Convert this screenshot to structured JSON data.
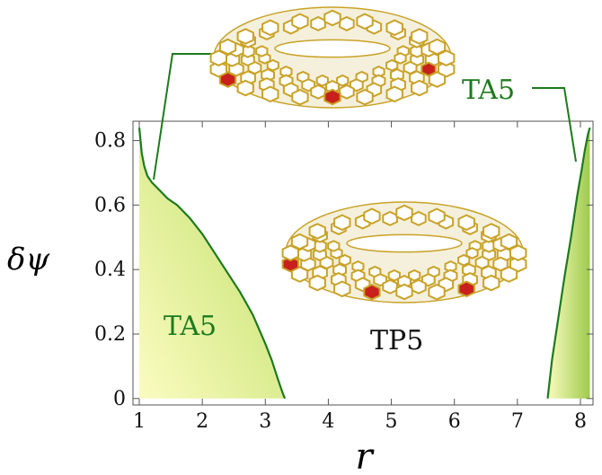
{
  "chart_data": {
    "type": "area",
    "xlabel": "r",
    "ylabel": "δψ",
    "xlim": [
      0.9,
      8.2
    ],
    "ylim": [
      -0.02,
      0.86
    ],
    "xticks": [
      "1",
      "2",
      "3",
      "4",
      "5",
      "6",
      "7",
      "8"
    ],
    "yticks": [
      "0",
      "0.2",
      "0.4",
      "0.6",
      "0.8"
    ],
    "grid": false,
    "legend": "none",
    "colors": {
      "fill_light": "#fbfcc0",
      "fill_dark": "#a7cf57",
      "boundary": "#1d7a1d",
      "label": "#1d7a1d",
      "pentagon_red": "#c8201c",
      "pentagon_blue": "#1a2a8a",
      "lattice": "#c9a227"
    },
    "regions": [
      {
        "label": "TA5",
        "boundary": {
          "x": [
            1.0,
            1.04,
            1.08,
            1.13,
            1.2,
            1.3,
            1.45,
            1.6,
            1.8,
            2.0,
            2.2,
            2.4,
            2.6,
            2.8,
            3.0,
            3.1,
            3.2,
            3.27,
            3.31
          ],
          "y": [
            0.84,
            0.76,
            0.72,
            0.69,
            0.67,
            0.65,
            0.62,
            0.6,
            0.56,
            0.51,
            0.45,
            0.39,
            0.33,
            0.26,
            0.17,
            0.12,
            0.06,
            0.02,
            0.0
          ]
        }
      },
      {
        "label": "TA5",
        "boundary": {
          "x": [
            7.48,
            7.55,
            7.65,
            7.75,
            7.85,
            7.95,
            8.02,
            8.07,
            8.12,
            8.15
          ],
          "y": [
            0.0,
            0.12,
            0.25,
            0.38,
            0.5,
            0.63,
            0.71,
            0.77,
            0.82,
            0.84
          ]
        }
      }
    ],
    "annotations": [
      "TA5",
      "TP5",
      "TA5"
    ]
  }
}
